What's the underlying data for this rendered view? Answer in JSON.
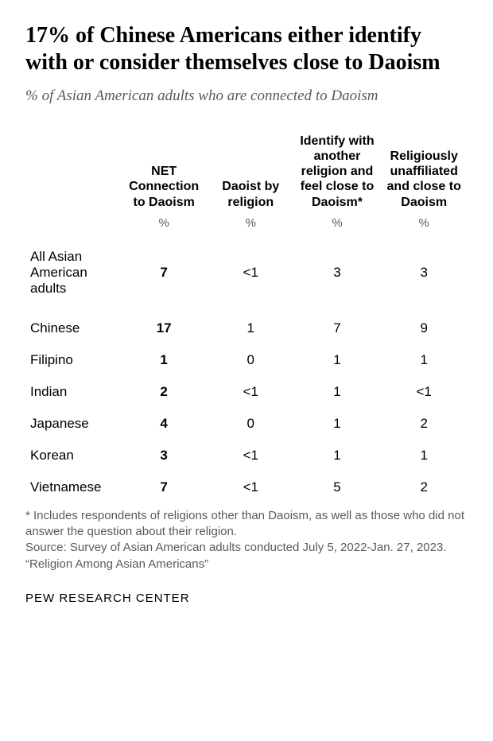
{
  "title": "17% of Chinese Americans either identify with or consider themselves close to Daoism",
  "subtitle": "% of Asian American adults who are connected to Daoism",
  "columns": [
    "NET Connection to Daoism",
    "Daoist by religion",
    "Identify with another religion and feel close to Daoism*",
    "Religiously unaffiliated and close to Daoism"
  ],
  "percentLabel": "%",
  "rows": [
    {
      "label": "All Asian American adults",
      "values": [
        "7",
        "<1",
        "3",
        "3"
      ],
      "firstGroup": true
    },
    {
      "label": "Chinese",
      "values": [
        "17",
        "1",
        "7",
        "9"
      ],
      "firstGroup": false
    },
    {
      "label": "Filipino",
      "values": [
        "1",
        "0",
        "1",
        "1"
      ],
      "firstGroup": false
    },
    {
      "label": "Indian",
      "values": [
        "2",
        "<1",
        "1",
        "<1"
      ],
      "firstGroup": false
    },
    {
      "label": "Japanese",
      "values": [
        "4",
        "0",
        "1",
        "2"
      ],
      "firstGroup": false
    },
    {
      "label": "Korean",
      "values": [
        "3",
        "<1",
        "1",
        "1"
      ],
      "firstGroup": false
    },
    {
      "label": "Vietnamese",
      "values": [
        "7",
        "<1",
        "5",
        "2"
      ],
      "firstGroup": false
    }
  ],
  "footnote": "* Includes respondents of religions other than Daoism, as well as those who did not answer the question about their religion.",
  "source": "Source: Survey of Asian American adults conducted July 5, 2022-Jan. 27, 2023.",
  "reportName": "“Religion Among Asian Americans”",
  "attribution": "PEW RESEARCH CENTER"
}
